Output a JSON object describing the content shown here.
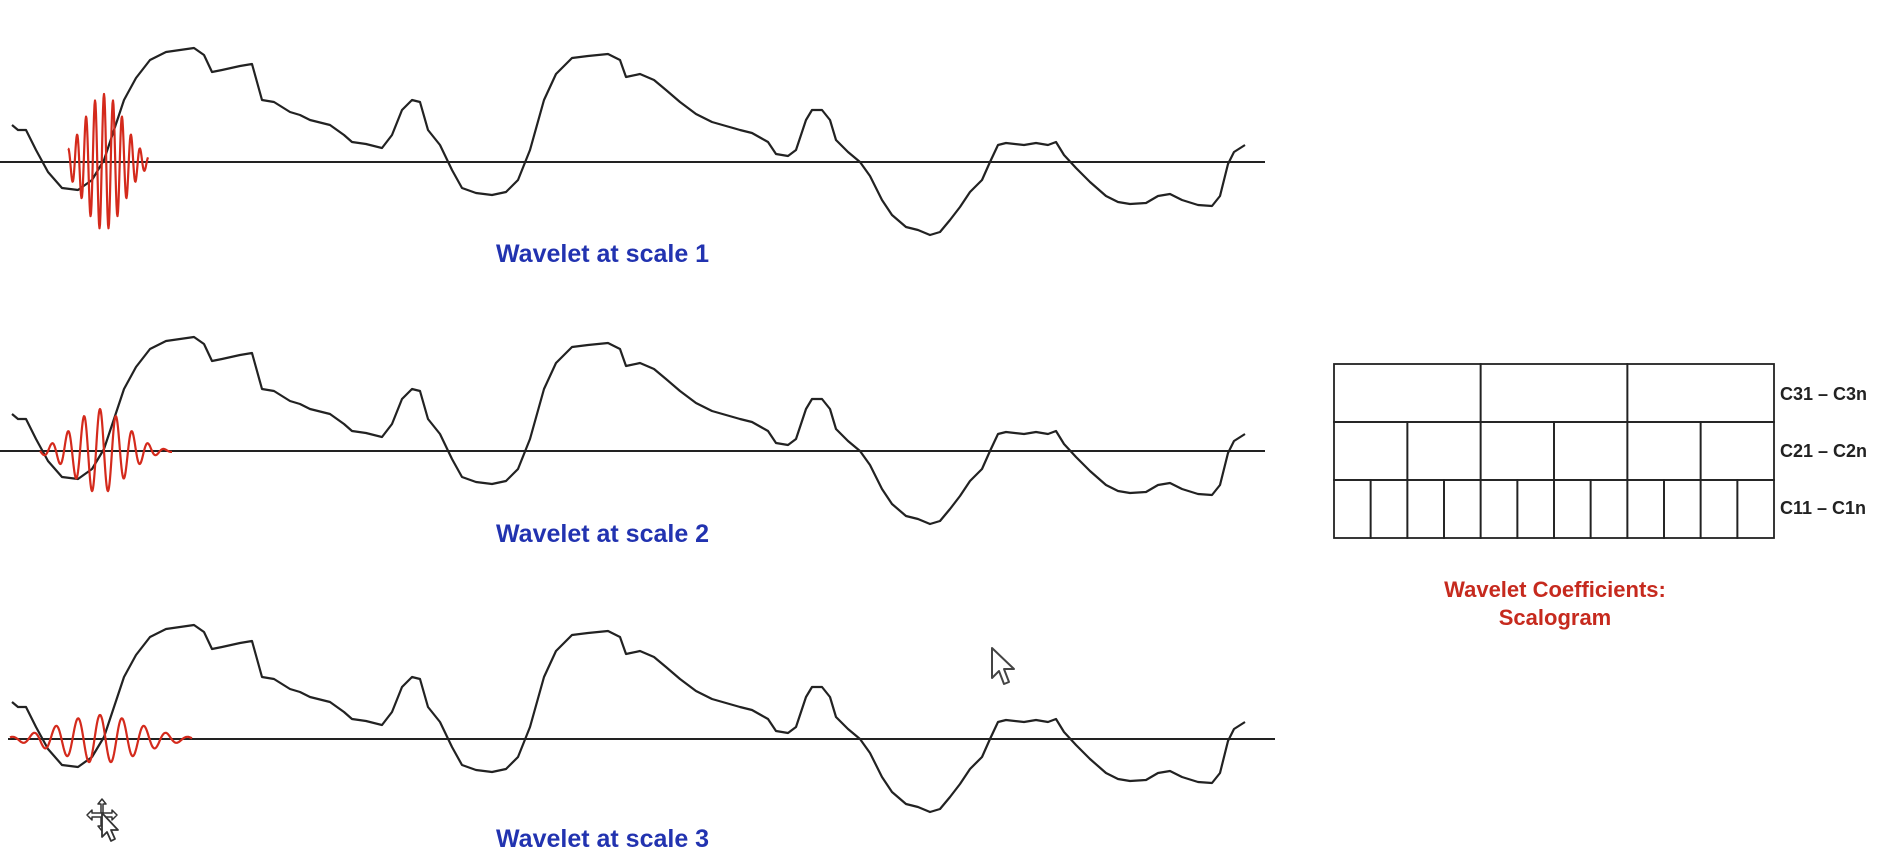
{
  "panels": [
    {
      "caption": "Wavelet at scale 1",
      "scale": 1
    },
    {
      "caption": "Wavelet at scale 2",
      "scale": 2
    },
    {
      "caption": "Wavelet at scale 3",
      "scale": 3
    }
  ],
  "scalogram": {
    "rows": [
      {
        "label": "C31 – C3n",
        "cells": 3
      },
      {
        "label": "C21 – C2n",
        "cells": 6
      },
      {
        "label": "C11 – C1n",
        "cells": 12
      }
    ],
    "title_line1": "Wavelet Coefficients:",
    "title_line2": "Scalogram"
  },
  "colors": {
    "signal": "#222222",
    "wavelet": "#d42a1c",
    "caption": "#2233b0",
    "scalogram_title": "#c62a1e"
  },
  "icons": [
    "arrow-cursor-icon",
    "move-cursor-icon"
  ]
}
